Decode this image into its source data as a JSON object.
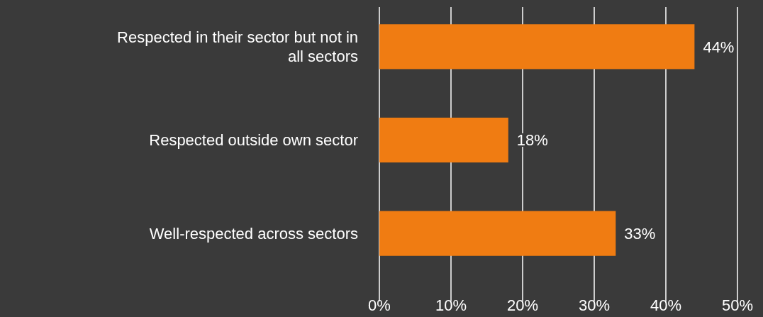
{
  "chart_data": {
    "type": "bar",
    "orientation": "horizontal",
    "categories": [
      "Respected in their sector but not in all sectors",
      "Respected outside own sector",
      "Well-respected across sectors"
    ],
    "values": [
      44,
      18,
      33
    ],
    "value_labels": [
      "44%",
      "18%",
      "33%"
    ],
    "color": "#f07c12",
    "xlim": [
      0,
      50
    ],
    "xticks": [
      {
        "value": 0,
        "label": "0%"
      },
      {
        "value": 10,
        "label": "10%"
      },
      {
        "value": 20,
        "label": "20%"
      },
      {
        "value": 30,
        "label": "30%"
      },
      {
        "value": 40,
        "label": "40%"
      },
      {
        "value": 50,
        "label": "50%"
      }
    ],
    "grid": "x"
  }
}
